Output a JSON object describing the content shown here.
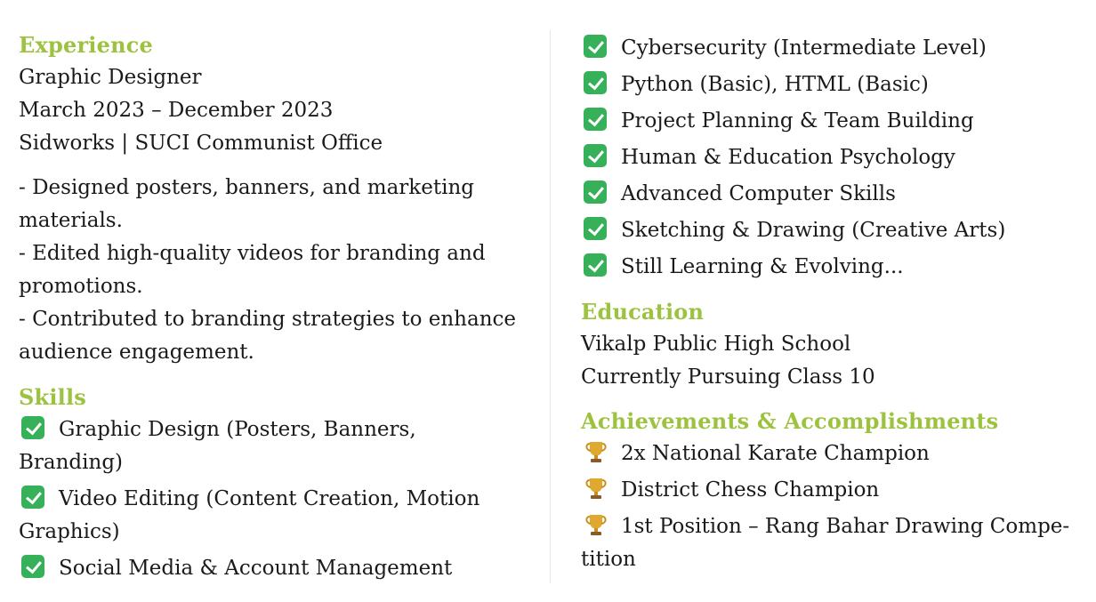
{
  "left": {
    "experience": {
      "heading": "Experience",
      "role": "Graphic Designer",
      "dates": "March 2023 – December 2023",
      "org": "Sidworks | SUCI Communist Office",
      "bullets": [
        "- Designed posters, banners, and marketing materials.",
        "- Edited high-quality videos for branding and promotions.",
        "- Contributed to branding strategies to enhance audience engagement."
      ]
    },
    "skills": {
      "heading": "Skills",
      "items": [
        "Graphic Design (Posters, Banners, Branding)",
        "Video Editing (Content Creation, Motion Graphics)",
        "Social Media & Account Management"
      ]
    }
  },
  "right": {
    "skills_items": [
      "Cybersecurity (Intermediate Level)",
      "Python (Basic), HTML (Basic)",
      "Project Planning & Team Building",
      "Human & Education Psychology",
      "Advanced Computer Skills",
      "Sketching & Drawing (Creative Arts)",
      "Still Learning & Evolving..."
    ],
    "education": {
      "heading": "Education",
      "school": "Vikalp Public High School",
      "status": "Currently Pursuing Class 10"
    },
    "achievements": {
      "heading": "Achievements & Accomplishments",
      "items": [
        "2x National Karate Champion",
        "District Chess Champion",
        "1st Position – Rang Bahar Drawing Compe-tition"
      ]
    }
  },
  "icons": {
    "check": "check-mark-button-icon",
    "trophy": "trophy-icon"
  },
  "colors": {
    "heading": "#9cc240",
    "check_bg": "#36b15a",
    "trophy": "#e0a82e"
  }
}
